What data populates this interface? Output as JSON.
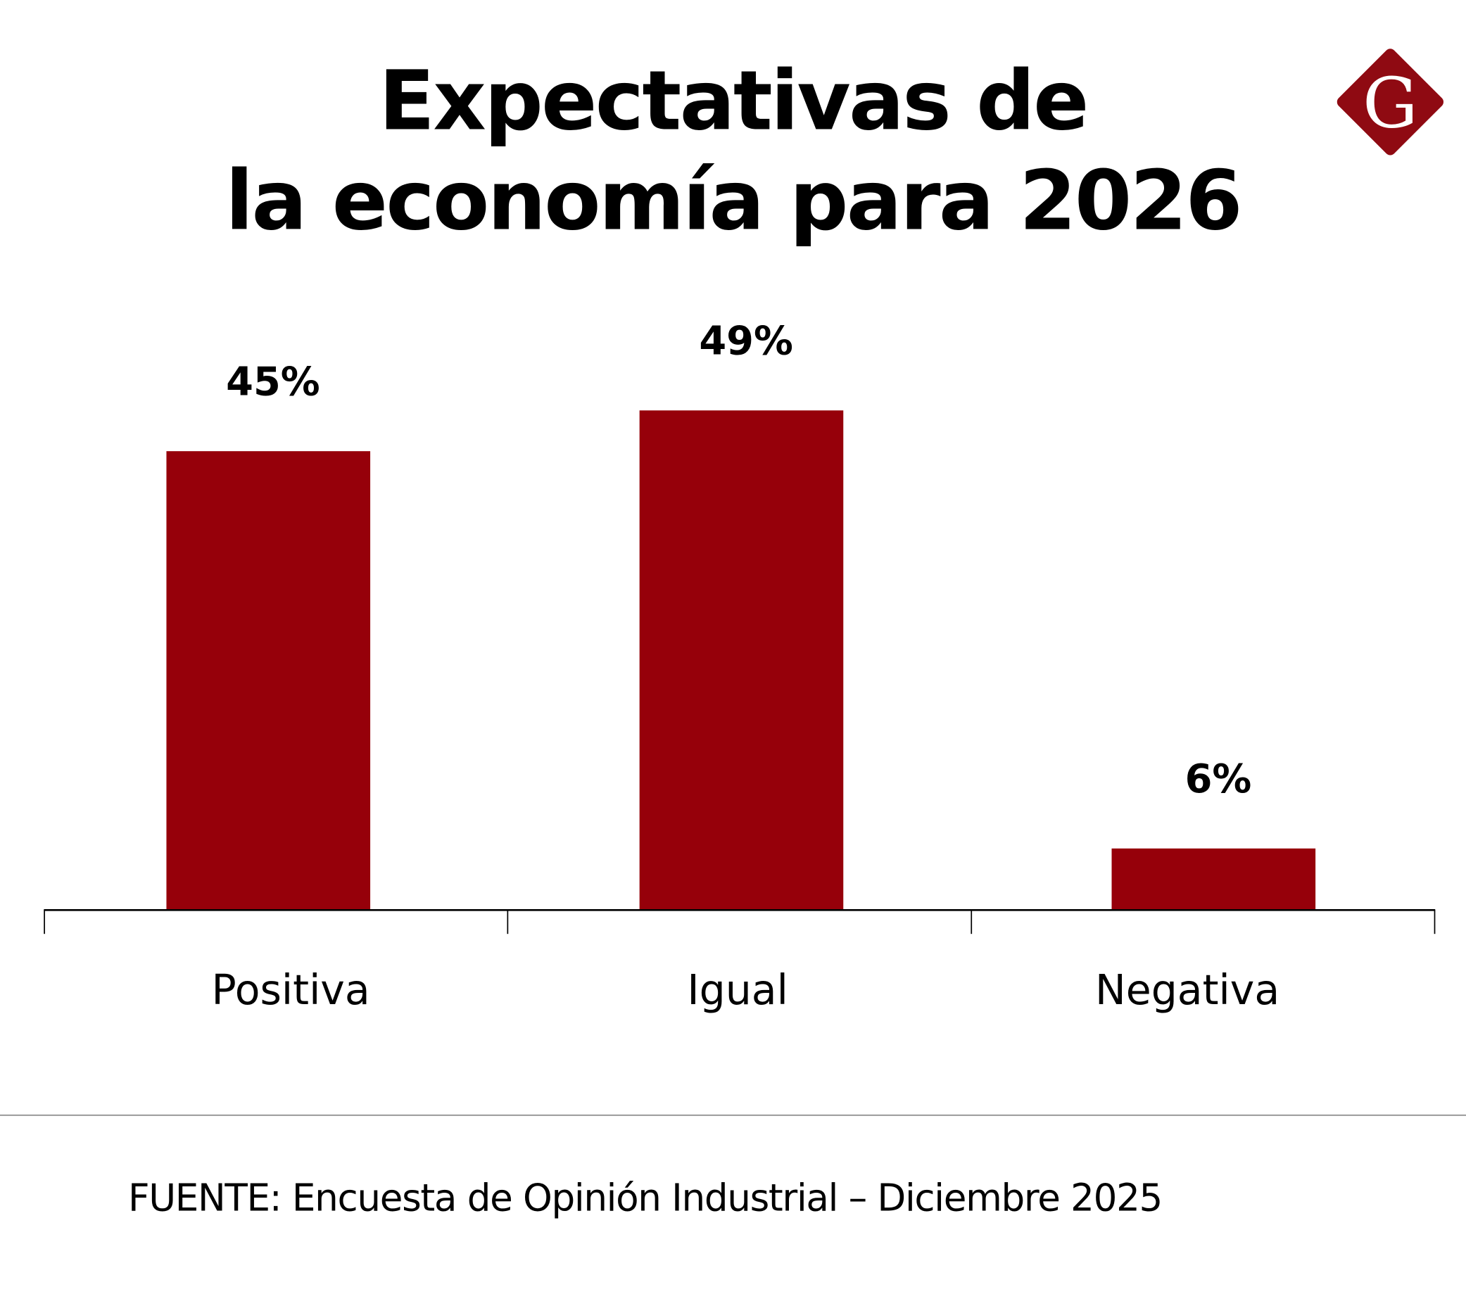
{
  "brand": {
    "logo_letter": "G",
    "logo_color": "#8f0a12"
  },
  "chart_data": {
    "type": "bar",
    "title": [
      "Expectativas de",
      "la economía para 2026"
    ],
    "categories": [
      "Positiva",
      "Igual",
      "Negativa"
    ],
    "values": [
      45,
      49,
      6
    ],
    "value_labels": [
      "45%",
      "49%",
      "6%"
    ],
    "xlabel": "",
    "ylabel": "",
    "ylim": [
      0,
      49
    ],
    "grid": false,
    "legend": "none",
    "bar_color": "#96000a"
  },
  "footer": {
    "source": "FUENTE: Encuesta de Opinión Industrial – Diciembre 2025"
  }
}
